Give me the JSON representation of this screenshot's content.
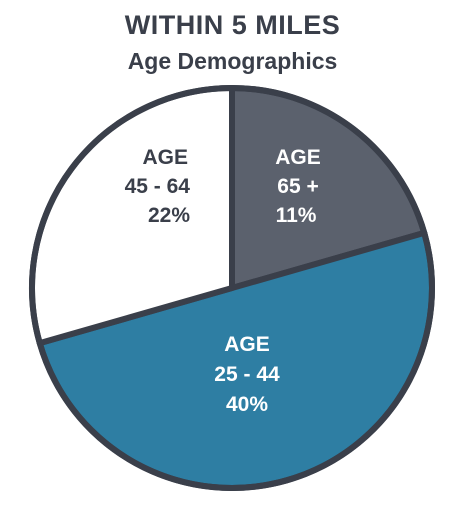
{
  "chart_data": {
    "type": "pie",
    "title": "WITHIN 5 MILES",
    "subtitle": "Age Demographics",
    "slices": [
      {
        "label": "AGE",
        "range": "65 +",
        "pct": "11%",
        "value": 11,
        "color": "#5b616d",
        "text_color": "#ffffff"
      },
      {
        "label": "AGE",
        "range": "25 - 44",
        "pct": "40%",
        "value": 40,
        "color": "#2e7ea3",
        "text_color": "#ffffff"
      },
      {
        "label": "AGE",
        "range": "45 - 64",
        "pct": "22%",
        "value": 22,
        "color": "#ffffff",
        "text_color": "#3a3f4a"
      }
    ],
    "outline_color": "#3a3f4a"
  }
}
